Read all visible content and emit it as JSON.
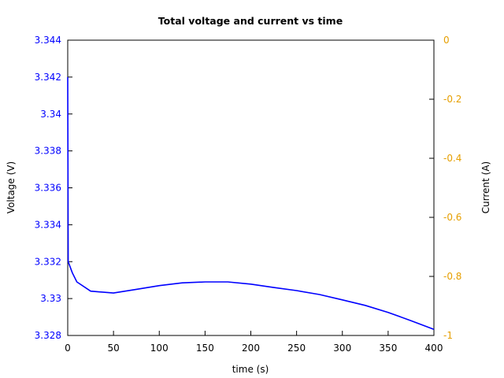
{
  "chart_data": {
    "type": "line",
    "title": "Total voltage and current vs time",
    "xlabel": "time (s)",
    "ylabel": "Voltage (V)",
    "y2label": "Current (A)",
    "xlim": [
      0,
      400
    ],
    "ylim": [
      3.328,
      3.344
    ],
    "y2lim": [
      -1,
      0
    ],
    "x_ticks": [
      "0",
      "50",
      "100",
      "150",
      "200",
      "250",
      "300",
      "350",
      "400"
    ],
    "y_ticks": [
      "3.328",
      "3.33",
      "3.332",
      "3.334",
      "3.336",
      "3.338",
      "3.34",
      "3.342",
      "3.344"
    ],
    "y2_ticks": [
      "-1",
      "-0.8",
      "-0.6",
      "-0.4",
      "-0.2",
      "0"
    ],
    "grid": false,
    "legend": null,
    "colors": {
      "voltage": "#0000ff",
      "current_axis": "#e69f00"
    },
    "series": [
      {
        "name": "Voltage",
        "axis": "left",
        "x": [
          0,
          0.5,
          5,
          10,
          25,
          50,
          75,
          100,
          125,
          150,
          175,
          200,
          225,
          250,
          275,
          300,
          325,
          350,
          375,
          400
        ],
        "values": [
          3.342,
          3.332,
          3.3314,
          3.3309,
          3.3304,
          3.3303,
          3.3305,
          3.3307,
          3.33085,
          3.3309,
          3.3309,
          3.33078,
          3.3306,
          3.33043,
          3.33022,
          3.32993,
          3.32963,
          3.32925,
          3.3288,
          3.32833
        ]
      }
    ]
  }
}
